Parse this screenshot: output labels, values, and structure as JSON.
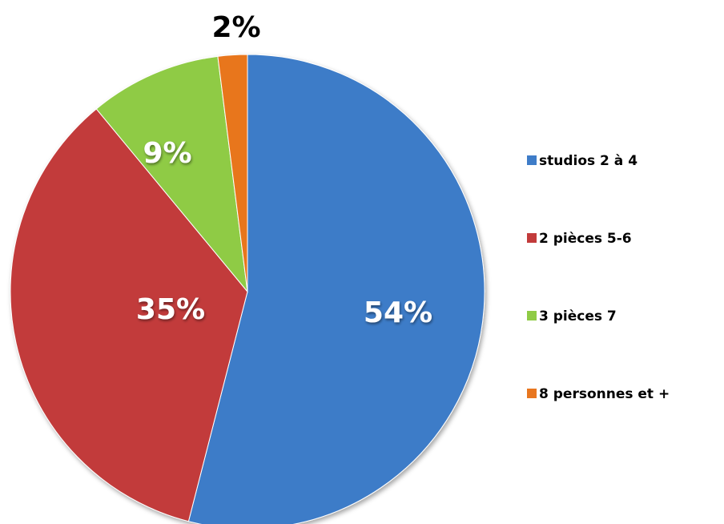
{
  "chart_data": {
    "type": "pie",
    "title": "",
    "categories": [
      "studios 2 à 4",
      "2 pièces 5-6",
      "3 pièces 7",
      "8 personnes et +"
    ],
    "values": [
      54,
      35,
      9,
      2
    ],
    "labels": [
      "54%",
      "35%",
      "9%",
      "2%"
    ],
    "colors": [
      "#3E7CC8",
      "#C23B3B",
      "#8FCB45",
      "#E8761F"
    ],
    "label_colors": [
      "#ffffff",
      "#ffffff",
      "#ffffff",
      "#000000"
    ],
    "start_angle_deg": 0,
    "direction": "clockwise",
    "legend_position": "right"
  }
}
